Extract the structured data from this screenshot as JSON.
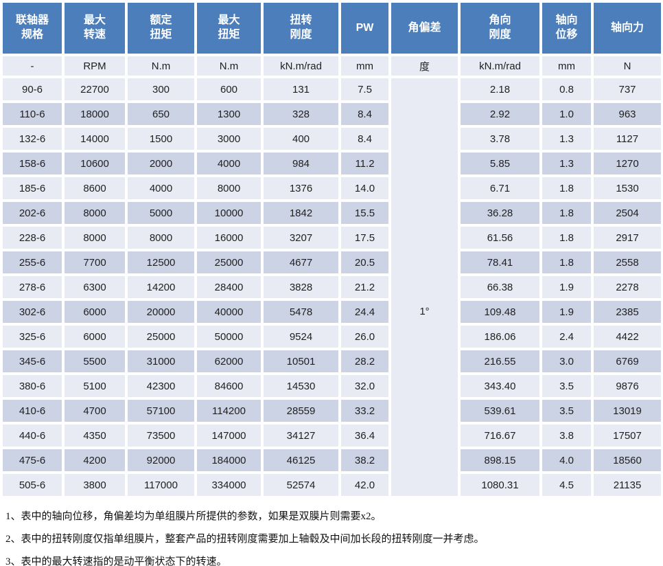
{
  "table": {
    "headers": [
      "联轴器\n规格",
      "最大\n转速",
      "额定\n扭矩",
      "最大\n扭矩",
      "扭转\n刚度",
      "PW",
      "角偏差",
      "角向\n刚度",
      "轴向\n位移",
      "轴向力"
    ],
    "units": [
      "-",
      "RPM",
      "N.m",
      "N.m",
      "kN.m/rad",
      "mm",
      "度",
      "kN.m/rad",
      "mm",
      "N"
    ],
    "angular_deviation": "1°",
    "rows": [
      [
        "90-6",
        "22700",
        "300",
        "600",
        "131",
        "7.5",
        "2.18",
        "0.8",
        "737"
      ],
      [
        "110-6",
        "18000",
        "650",
        "1300",
        "328",
        "8.4",
        "2.92",
        "1.0",
        "963"
      ],
      [
        "132-6",
        "14000",
        "1500",
        "3000",
        "400",
        "8.4",
        "3.78",
        "1.3",
        "1127"
      ],
      [
        "158-6",
        "10600",
        "2000",
        "4000",
        "984",
        "11.2",
        "5.85",
        "1.3",
        "1270"
      ],
      [
        "185-6",
        "8600",
        "4000",
        "8000",
        "1376",
        "14.0",
        "6.71",
        "1.8",
        "1530"
      ],
      [
        "202-6",
        "8000",
        "5000",
        "10000",
        "1842",
        "15.5",
        "36.28",
        "1.8",
        "2504"
      ],
      [
        "228-6",
        "8000",
        "8000",
        "16000",
        "3207",
        "17.5",
        "61.56",
        "1.8",
        "2917"
      ],
      [
        "255-6",
        "7700",
        "12500",
        "25000",
        "4677",
        "20.5",
        "78.41",
        "1.8",
        "2558"
      ],
      [
        "278-6",
        "6300",
        "14200",
        "28400",
        "3828",
        "21.2",
        "66.38",
        "1.9",
        "2278"
      ],
      [
        "302-6",
        "6000",
        "20000",
        "40000",
        "5478",
        "24.4",
        "109.48",
        "1.9",
        "2385"
      ],
      [
        "325-6",
        "6000",
        "25000",
        "50000",
        "9524",
        "26.0",
        "186.06",
        "2.4",
        "4422"
      ],
      [
        "345-6",
        "5500",
        "31000",
        "62000",
        "10501",
        "28.2",
        "216.55",
        "3.0",
        "6769"
      ],
      [
        "380-6",
        "5100",
        "42300",
        "84600",
        "14530",
        "32.0",
        "343.40",
        "3.5",
        "9876"
      ],
      [
        "410-6",
        "4700",
        "57100",
        "114200",
        "28559",
        "33.2",
        "539.61",
        "3.5",
        "13019"
      ],
      [
        "440-6",
        "4350",
        "73500",
        "147000",
        "34127",
        "36.4",
        "716.67",
        "3.8",
        "17507"
      ],
      [
        "475-6",
        "4200",
        "92000",
        "184000",
        "46125",
        "38.2",
        "898.15",
        "4.0",
        "18560"
      ],
      [
        "505-6",
        "3800",
        "117000",
        "334000",
        "52574",
        "42.0",
        "1080.31",
        "4.5",
        "21135"
      ]
    ]
  },
  "notes": [
    "1、表中的轴向位移，角偏差均为单组膜片所提供的参数，如果是双膜片则需要x2。",
    "2、表中的扭转刚度仅指单组膜片，整套产品的扭转刚度需要加上轴毂及中间加长段的扭转刚度一并考虑。",
    "3、表中的最大转速指的是动平衡状态下的转速。"
  ],
  "colors": {
    "header_bg": "#4B7EBB",
    "row_light": "#E9EBF4",
    "row_dark": "#CCD3E5",
    "header_text": "#FFFFFF",
    "body_text": "#1F1F1F"
  }
}
